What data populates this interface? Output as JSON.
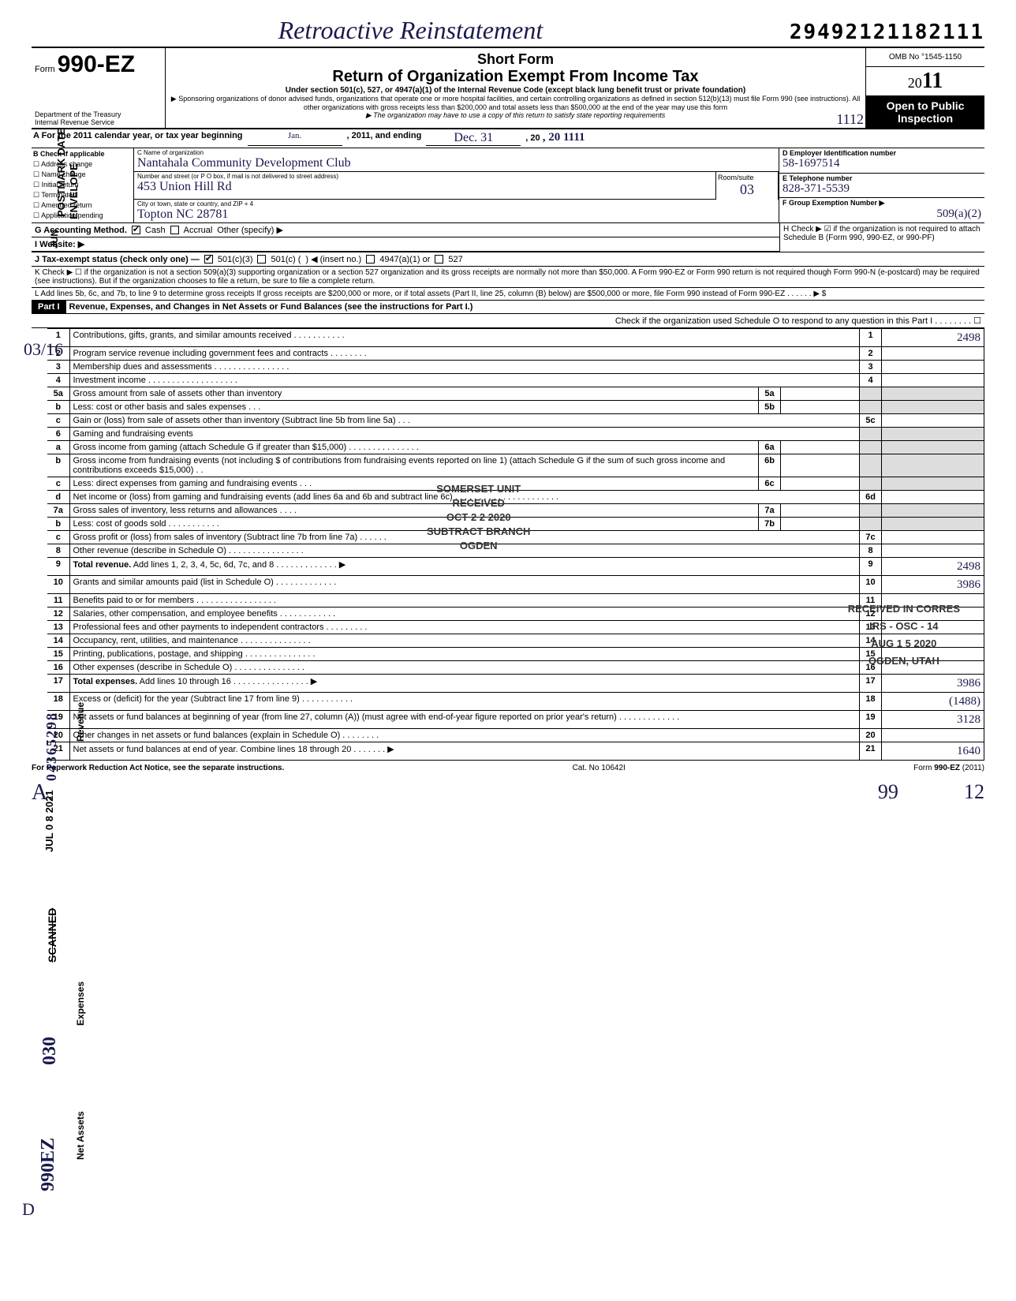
{
  "top": {
    "retro_title": "Retroactive Reinstatement",
    "top_number": "29492121182111"
  },
  "header": {
    "form_label": "Form",
    "form_number": "990-EZ",
    "dept1": "Department of the Treasury",
    "dept2": "Internal Revenue Service",
    "short_form": "Short Form",
    "return_title": "Return of Organization Exempt From Income Tax",
    "sub1": "Under section 501(c), 527, or 4947(a)(1) of the Internal Revenue Code (except black lung benefit trust or private foundation)",
    "sub2": "▶ Sponsoring organizations of donor advised funds, organizations that operate one or more hospital facilities, and certain controlling organizations as defined in section 512(b)(13) must file Form 990 (see instructions). All other organizations with gross receipts less than $200,000 and total assets less than $500,000 at the end of the year may use this form",
    "sub3": "▶ The organization may have to use a copy of this return to satisfy state reporting requirements",
    "omb": "OMB No °1545-1150",
    "year": "2011",
    "open1": "Open to Public",
    "open2": "Inspection",
    "year_stamp": "1112"
  },
  "rowA": {
    "label": "A  For the 2011 calendar year, or tax year beginning",
    "begin": "Jan.",
    "mid": ", 2011, and ending",
    "end_month": "Dec. 31",
    "end_year": ", 20 11"
  },
  "colB": {
    "header": "B Check if applicable",
    "opts": [
      "Address change",
      "Name change",
      "Initial return",
      "Terminated",
      "Amended return",
      "Application pending"
    ]
  },
  "colC": {
    "name_label": "C Name of organization",
    "name_val": "Nantahala Community Development Club",
    "street_label": "Number and street (or P O box, if mail is not delivered to street address)",
    "street_val": "453 Union Hill Rd  ",
    "city_label": "City or town, state or country, and ZIP + 4",
    "city_val": "Topton NC   28781",
    "room_label": "Room/suite",
    "room_val": "03"
  },
  "colD": {
    "label": "D Employer Identification number",
    "val": "58-1697514"
  },
  "colE": {
    "label": "E Telephone number",
    "val": "828-371-5539"
  },
  "colF": {
    "label": "F Group Exemption Number ▶",
    "val2": "509(a)(2)"
  },
  "rowG": {
    "label": "G Accounting Method.",
    "cash": "Cash",
    "accrual": "Accrual",
    "other": "Other (specify) ▶"
  },
  "rowH": {
    "label": "H Check ▶ ☑ if the organization is not required to attach Schedule B (Form 990, 990-EZ, or 990-PF)"
  },
  "rowI": {
    "label": "I  Website: ▶"
  },
  "rowJ": {
    "label": "J  Tax-exempt status (check only one) —",
    "o1": "501(c)(3)",
    "o2": "501(c) (",
    "o3": ") ◀ (insert no.)",
    "o4": "4947(a)(1) or",
    "o5": "527"
  },
  "rowK": {
    "label": "K Check ▶  ☐  if the organization is not a section 509(a)(3) supporting organization or a section 527 organization and its gross receipts are normally not more than $50,000. A Form 990-EZ or Form 990 return is not required though Form 990-N (e-postcard) may be required (see instructions). But if the organization chooses to file a return, be sure to file a complete return."
  },
  "rowL": {
    "label": "L  Add lines 5b, 6c, and 7b, to line 9 to determine gross receipts  If gross receipts are $200,000 or more, or if total assets (Part II, line 25, column (B) below) are $500,000 or more, file Form 990 instead of Form 990-EZ    .     .     .     .     .     .     ▶  $"
  },
  "part1": {
    "label": "Part I",
    "title": "Revenue, Expenses, and Changes in Net Assets or Fund Balances (see the instructions for Part I.)",
    "sub": "Check if the organization used Schedule O to respond to any question in this Part I .   .   .   .   .   .   .   .  ☐"
  },
  "lines": [
    {
      "n": "1",
      "d": "Contributions, gifts, grants, and similar amounts received .    .    .    .    .    .    .    .    .    .    .",
      "bn": "1",
      "v": "2498"
    },
    {
      "n": "2",
      "d": "Program service revenue including government fees and contracts   .    .    .    .    .    .    .    .",
      "bn": "2",
      "v": ""
    },
    {
      "n": "3",
      "d": "Membership dues and assessments .    .    .    .    .    .    .    .    .    .    .    .    .    .    .    .",
      "bn": "3",
      "v": ""
    },
    {
      "n": "4",
      "d": "Investment income    .    .    .    .    .    .    .    .    .    .    .    .    .    .    .    .    .    .    .",
      "bn": "4",
      "v": ""
    }
  ],
  "line5": {
    "a_n": "5a",
    "a_d": "Gross amount from sale of assets other than inventory",
    "a_box": "5a",
    "b_n": "b",
    "b_d": "Less: cost or other basis and sales expenses .    .    .",
    "b_box": "5b",
    "c_n": "c",
    "c_d": "Gain or (loss) from sale of assets other than inventory (Subtract line 5b from line 5a)  .    .    .",
    "c_box": "5c"
  },
  "line6": {
    "n": "6",
    "d": "Gaming and fundraising events",
    "a_n": "a",
    "a_d": "Gross income from gaming (attach Schedule G if greater than $15,000) .    .    .    .    .    .    .    .    .    .    .    .    .    .    .",
    "a_box": "6a",
    "b_n": "b",
    "b_d": "Gross income from fundraising events (not including  $                      of contributions from fundraising events reported on line 1) (attach Schedule G if the sum of such gross income and contributions exceeds $15,000) .    .",
    "b_box": "6b",
    "c_n": "c",
    "c_d": "Less: direct expenses from gaming and fundraising events    .    .    .",
    "c_box": "6c",
    "d_n": "d",
    "d_d": "Net income or (loss) from gaming and fundraising events (add lines 6a and 6b and subtract line 6c)    .    .    .    .    .    .    .    .    .    .    .    .    .    .    .    .    .    .    .    .    .    .",
    "d_box": "6d"
  },
  "line7": {
    "a_n": "7a",
    "a_d": "Gross sales of inventory, less returns and allowances  .    .    .    .",
    "a_box": "7a",
    "b_n": "b",
    "b_d": "Less: cost of goods sold     .    .    .    .    .    .    .    .    .    .    .",
    "b_box": "7b",
    "c_n": "c",
    "c_d": "Gross profit or (loss) from sales of inventory (Subtract line 7b from line 7a)  .    .    .    .    .    .",
    "c_box": "7c"
  },
  "lines2": [
    {
      "n": "8",
      "d": "Other revenue (describe in Schedule O) .    .    .    .    .    .    .    .    .    .    .    .    .    .    .    .",
      "bn": "8",
      "v": ""
    },
    {
      "n": "9",
      "d": "Total revenue. Add lines 1, 2, 3, 4, 5c, 6d, 7c, and 8   .    .    .    .    .    .    .    .    .    .    .    .    . ▶",
      "bn": "9",
      "v": "2498",
      "bold": true
    },
    {
      "n": "10",
      "d": "Grants and similar amounts paid (list in Schedule O)  .    .    .    .    .    .    .    .    .    .    .    .    .",
      "bn": "10",
      "v": "3986"
    },
    {
      "n": "11",
      "d": "Benefits paid to or for members    .    .    .    .    .    .    .    .    .    .    .    .    .    .    .    .    .",
      "bn": "11",
      "v": ""
    },
    {
      "n": "12",
      "d": "Salaries, other compensation, and employee benefits    .    .    .    .    .    .    .    .    .    .    .    .",
      "bn": "12",
      "v": ""
    },
    {
      "n": "13",
      "d": "Professional fees and other payments to independent contractors .    .    .    .    .    .    .    .    .",
      "bn": "13",
      "v": ""
    },
    {
      "n": "14",
      "d": "Occupancy, rent, utilities, and maintenance  .    .    .    .    .    .    .    .    .    .    .    .    .    .    .",
      "bn": "14",
      "v": ""
    },
    {
      "n": "15",
      "d": "Printing, publications, postage, and shipping .    .    .    .    .    .    .    .    .    .    .    .    .    .    .",
      "bn": "15",
      "v": ""
    },
    {
      "n": "16",
      "d": "Other expenses (describe in Schedule O)  .    .    .    .    .    .    .    .    .    .    .    .    .    .    .",
      "bn": "16",
      "v": ""
    },
    {
      "n": "17",
      "d": "Total expenses. Add lines 10 through 16 .    .    .    .    .    .    .    .    .    .    .    .    .    .    .    . ▶",
      "bn": "17",
      "v": "3986",
      "bold": true
    },
    {
      "n": "18",
      "d": "Excess or (deficit) for the year (Subtract line 17 from line 9)   .    .    .    .    .    .    .    .    .    .    .",
      "bn": "18",
      "v": "(1488)"
    },
    {
      "n": "19",
      "d": "Net assets or fund balances at beginning of year (from line 27, column (A)) (must agree with end-of-year figure reported on prior year's return)   .    .    .    .    .    .    .    .    .    .    .    .    .",
      "bn": "19",
      "v": "3128"
    },
    {
      "n": "20",
      "d": "Other changes in net assets or fund balances (explain in Schedule O) .    .    .    .    .    .    .    .",
      "bn": "20",
      "v": ""
    },
    {
      "n": "21",
      "d": "Net assets or fund balances at end of year. Combine lines 18 through 20    .    .    .    .    .    .    . ▶",
      "bn": "21",
      "v": "1640"
    }
  ],
  "side_labels": {
    "revenue": "Revenue",
    "expenses": "Expenses",
    "netassets": "Net Assets"
  },
  "footer": {
    "left": "For Paperwork Reduction Act Notice, see the separate instructions.",
    "mid": "Cat. No 10642I",
    "right": "Form 990-EZ (2011)"
  },
  "bottom_hand": {
    "a": "A.",
    "n1": "99",
    "n2": "12"
  },
  "stamps": {
    "s1": "SOMERSET UNIT\nRECEIVED\nOCT 2 2 2020\nSUBTRACT BRANCH\nOGDEN",
    "s2": "RECEIVED IN CORRES\nIRS - OSC - 14\nAUG 1 5 2020\nOGDEN, UTAH"
  },
  "left_margin": {
    "date1": "JUL 0 8 2021",
    "num1": "04365298",
    "scanned": "SCANNED",
    "num2": "030",
    "num3": "990EZ",
    "d": "D",
    "top_num": "03/16",
    "postmark": "POSTMARK DATE",
    "envelope": "ENVELOPE",
    "jun": "JUN"
  }
}
